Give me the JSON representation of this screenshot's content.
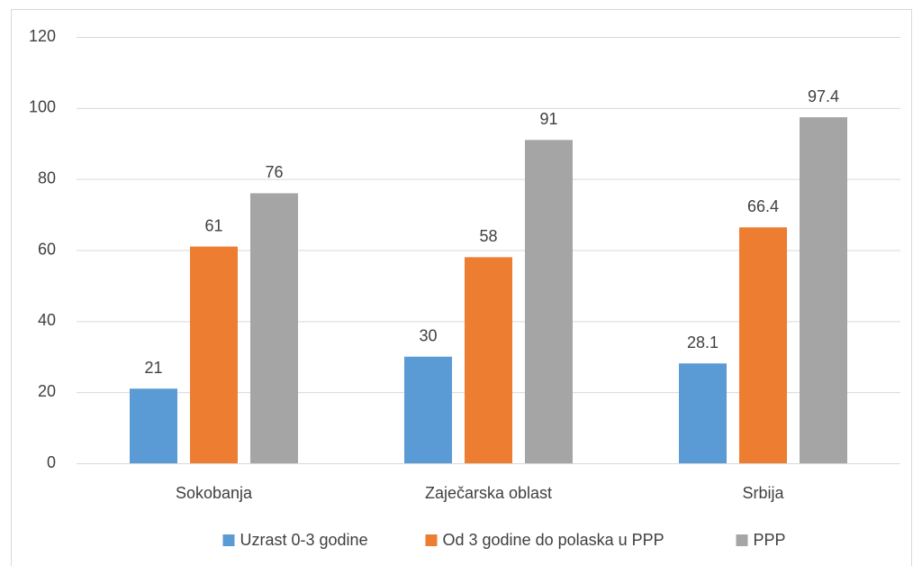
{
  "chart_data": {
    "type": "bar",
    "categories": [
      "Sokobanja",
      "Zaječarska oblast",
      "Srbija"
    ],
    "series": [
      {
        "name": "Uzrast 0-3 godine",
        "color": "#5b9bd5",
        "values": [
          21,
          30,
          28.1
        ]
      },
      {
        "name": "Od 3 godine do polaska u PPP",
        "color": "#ed7d31",
        "values": [
          61,
          58,
          66.4
        ]
      },
      {
        "name": "PPP",
        "color": "#a5a5a5",
        "values": [
          76,
          91,
          97.4
        ]
      }
    ],
    "ylim": [
      0,
      120
    ],
    "yticks": [
      0,
      20,
      40,
      60,
      80,
      100,
      120
    ],
    "grid": true,
    "legend": "bottom"
  }
}
